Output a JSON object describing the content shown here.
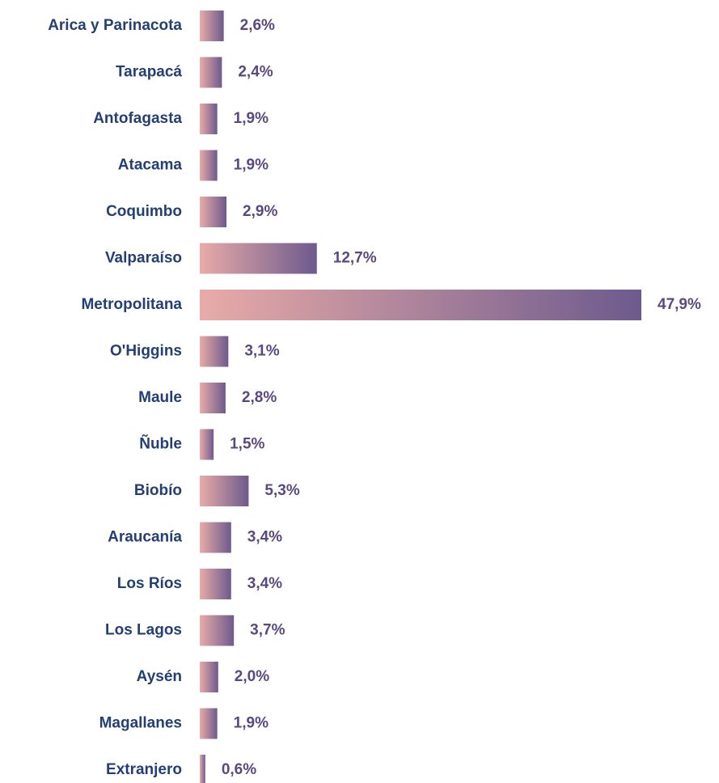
{
  "chart_data": {
    "type": "barh",
    "categories": [
      "Arica y Parinacota",
      "Tarapacá",
      "Antofagasta",
      "Atacama",
      "Coquimbo",
      "Valparaíso",
      "Metropolitana",
      "O'Higgins",
      "Maule",
      "Ñuble",
      "Biobío",
      "Araucanía",
      "Los Ríos",
      "Los Lagos",
      "Aysén",
      "Magallanes",
      "Extranjero"
    ],
    "values": [
      2.6,
      2.4,
      1.9,
      1.9,
      2.9,
      12.7,
      47.9,
      3.1,
      2.8,
      1.5,
      5.3,
      3.4,
      3.4,
      3.7,
      2.0,
      1.9,
      0.6
    ],
    "value_labels": [
      "2,6%",
      "2,4%",
      "1,9%",
      "1,9%",
      "2,9%",
      "12,7%",
      "47,9%",
      "3,1%",
      "2,8%",
      "1,5%",
      "5,3%",
      "3,4%",
      "3,4%",
      "3,7%",
      "2,0%",
      "1,9%",
      "0,6%"
    ],
    "gradient": [
      "#e8aba8",
      "#6d5a8d"
    ],
    "category_color": "#233f73",
    "label_color": "#5a4880"
  }
}
